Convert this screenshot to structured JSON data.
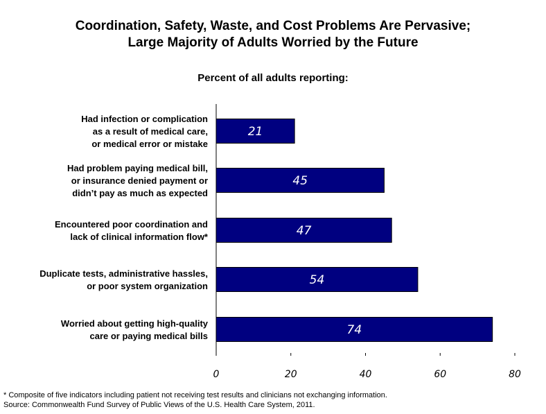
{
  "title_line1": "Coordination, Safety, Waste, and Cost Problems Are Pervasive;",
  "title_line2": "Large Majority of Adults Worried by the Future",
  "subtitle": "Percent of all adults reporting:",
  "colors": {
    "bar": "#000080",
    "bar_text": "#ffffff"
  },
  "chart_data": {
    "type": "bar",
    "orientation": "horizontal",
    "categories": [
      [
        "Had infection or complication",
        "as a result of medical care,",
        "or medical error or mistake"
      ],
      [
        "Had problem paying medical bill,",
        "or insurance denied payment or",
        "didn’t pay as much as expected"
      ],
      [
        "Encountered poor coordination and",
        "lack of clinical information flow*"
      ],
      [
        "Duplicate tests, administrative hassles,",
        "or poor system organization"
      ],
      [
        "Worried about getting high-quality",
        "care or paying medical bills"
      ]
    ],
    "values": [
      21,
      45,
      47,
      54,
      74
    ],
    "xlim": [
      0,
      80
    ],
    "xticks": [
      0,
      20,
      40,
      60,
      80
    ],
    "grid": false
  },
  "footnote_line1": "* Composite of five indicators including patient not receiving test results and clinicians not exchanging information.",
  "footnote_line2": "Source: Commonwealth Fund Survey of Public Views of the U.S. Health Care System, 2011."
}
